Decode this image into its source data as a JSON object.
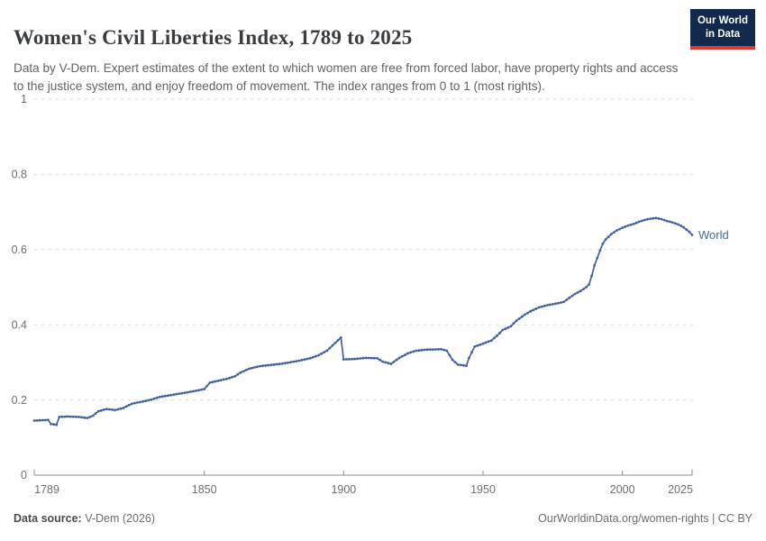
{
  "header": {
    "title": "Women's Civil Liberties Index, 1789 to 2025",
    "subtitle": "Data by V-Dem. Expert estimates of the extent to which women are free from forced labor, have property rights and access to the justice system, and enjoy freedom of movement. The index ranges from 0 to 1 (most rights)."
  },
  "logo": {
    "line1": "Our World",
    "line2": "in Data"
  },
  "chart_data": {
    "type": "line",
    "title": "Women's Civil Liberties Index, 1789 to 2025",
    "series_label": "World",
    "xlabel": "",
    "ylabel": "",
    "xlim": [
      1789,
      2025
    ],
    "ylim": [
      0,
      1
    ],
    "x_ticks": [
      1789,
      1850,
      1900,
      1950,
      2000,
      2025
    ],
    "y_ticks": [
      0,
      0.2,
      0.4,
      0.6,
      0.8,
      1
    ],
    "grid": "horizontal dashed",
    "legend_position": "end-of-line label",
    "markers": "small dot per year",
    "points": [
      [
        1789,
        0.145
      ],
      [
        1794,
        0.147
      ],
      [
        1795,
        0.136
      ],
      [
        1797,
        0.134
      ],
      [
        1798,
        0.155
      ],
      [
        1801,
        0.156
      ],
      [
        1805,
        0.155
      ],
      [
        1808,
        0.152
      ],
      [
        1810,
        0.158
      ],
      [
        1812,
        0.17
      ],
      [
        1815,
        0.176
      ],
      [
        1818,
        0.173
      ],
      [
        1821,
        0.179
      ],
      [
        1824,
        0.19
      ],
      [
        1828,
        0.196
      ],
      [
        1831,
        0.201
      ],
      [
        1834,
        0.208
      ],
      [
        1838,
        0.213
      ],
      [
        1842,
        0.218
      ],
      [
        1846,
        0.223
      ],
      [
        1850,
        0.229
      ],
      [
        1852,
        0.246
      ],
      [
        1855,
        0.251
      ],
      [
        1858,
        0.256
      ],
      [
        1861,
        0.263
      ],
      [
        1863,
        0.273
      ],
      [
        1866,
        0.283
      ],
      [
        1870,
        0.29
      ],
      [
        1875,
        0.294
      ],
      [
        1880,
        0.299
      ],
      [
        1885,
        0.306
      ],
      [
        1888,
        0.311
      ],
      [
        1891,
        0.319
      ],
      [
        1894,
        0.331
      ],
      [
        1897,
        0.352
      ],
      [
        1899,
        0.366
      ],
      [
        1900,
        0.308
      ],
      [
        1904,
        0.309
      ],
      [
        1908,
        0.312
      ],
      [
        1912,
        0.311
      ],
      [
        1914,
        0.302
      ],
      [
        1917,
        0.296
      ],
      [
        1920,
        0.312
      ],
      [
        1923,
        0.324
      ],
      [
        1926,
        0.331
      ],
      [
        1930,
        0.334
      ],
      [
        1935,
        0.335
      ],
      [
        1937,
        0.331
      ],
      [
        1939,
        0.307
      ],
      [
        1941,
        0.294
      ],
      [
        1944,
        0.291
      ],
      [
        1945,
        0.312
      ],
      [
        1947,
        0.342
      ],
      [
        1950,
        0.35
      ],
      [
        1953,
        0.358
      ],
      [
        1955,
        0.371
      ],
      [
        1957,
        0.386
      ],
      [
        1960,
        0.396
      ],
      [
        1962,
        0.411
      ],
      [
        1965,
        0.427
      ],
      [
        1967,
        0.436
      ],
      [
        1970,
        0.446
      ],
      [
        1973,
        0.452
      ],
      [
        1976,
        0.456
      ],
      [
        1979,
        0.461
      ],
      [
        1981,
        0.472
      ],
      [
        1983,
        0.482
      ],
      [
        1985,
        0.49
      ],
      [
        1987,
        0.5
      ],
      [
        1988,
        0.507
      ],
      [
        1989,
        0.53
      ],
      [
        1990,
        0.558
      ],
      [
        1991,
        0.578
      ],
      [
        1992,
        0.598
      ],
      [
        1993,
        0.616
      ],
      [
        1994,
        0.627
      ],
      [
        1996,
        0.641
      ],
      [
        1998,
        0.651
      ],
      [
        2000,
        0.658
      ],
      [
        2002,
        0.664
      ],
      [
        2004,
        0.668
      ],
      [
        2006,
        0.674
      ],
      [
        2008,
        0.679
      ],
      [
        2010,
        0.682
      ],
      [
        2012,
        0.684
      ],
      [
        2014,
        0.681
      ],
      [
        2016,
        0.676
      ],
      [
        2018,
        0.672
      ],
      [
        2020,
        0.667
      ],
      [
        2022,
        0.659
      ],
      [
        2024,
        0.647
      ],
      [
        2025,
        0.639
      ]
    ]
  },
  "footer": {
    "source_label": "Data source:",
    "source_value": "V-Dem (2026)",
    "attribution": "OurWorldinData.org/women-rights | CC BY"
  },
  "colors": {
    "series": "#45619d",
    "series_label": "#4a67a5",
    "gridline": "#dcdcdc",
    "axis": "#8f8f8f",
    "tick_label": "#6e6e6e",
    "logo_bg": "#12294b",
    "logo_stripe": "#d93a34"
  }
}
